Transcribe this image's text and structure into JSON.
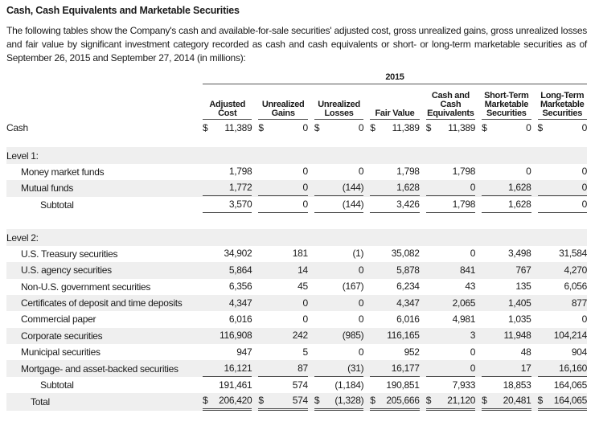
{
  "title": "Cash, Cash Equivalents and Marketable Securities",
  "intro": "The following tables show the Company's cash and available-for-sale securities' adjusted cost, gross unrealized gains, gross unrealized losses and fair value by significant investment category recorded as cash and cash equivalents or short- or long-term marketable securities as of September 26, 2015 and September 27, 2014 (in millions):",
  "table": {
    "year": "2015",
    "columns": [
      "Adjusted Cost",
      "Unrealized Gains",
      "Unrealized Losses",
      "Fair Value",
      "Cash and Cash Equivalents",
      "Short-Term Marketable Securities",
      "Long-Term Marketable Securities"
    ],
    "currency_symbol": "$",
    "rows": [
      {
        "type": "item",
        "indent": 0,
        "gray": false,
        "dollar": true,
        "label": "Cash",
        "values": [
          "11,389",
          "0",
          "0",
          "11,389",
          "11,389",
          "0",
          "0"
        ]
      },
      {
        "type": "spacer"
      },
      {
        "type": "header",
        "gray": true,
        "label": "Level 1:"
      },
      {
        "type": "item",
        "indent": 1,
        "gray": false,
        "label": "Money market funds",
        "values": [
          "1,798",
          "0",
          "0",
          "1,798",
          "1,798",
          "0",
          "0"
        ]
      },
      {
        "type": "item",
        "indent": 1,
        "gray": true,
        "underline": true,
        "label": "Mutual funds",
        "values": [
          "1,772",
          "0",
          "(144)",
          "1,628",
          "0",
          "1,628",
          "0"
        ]
      },
      {
        "type": "item",
        "indent": 2,
        "gray": false,
        "underline": true,
        "label": "Subtotal",
        "values": [
          "3,570",
          "0",
          "(144)",
          "3,426",
          "1,798",
          "1,628",
          "0"
        ]
      },
      {
        "type": "spacer2"
      },
      {
        "type": "header",
        "gray": true,
        "label": "Level 2:"
      },
      {
        "type": "item",
        "indent": 1,
        "gray": false,
        "label": "U.S. Treasury securities",
        "values": [
          "34,902",
          "181",
          "(1)",
          "35,082",
          "0",
          "3,498",
          "31,584"
        ]
      },
      {
        "type": "item",
        "indent": 1,
        "gray": true,
        "label": "U.S. agency securities",
        "values": [
          "5,864",
          "14",
          "0",
          "5,878",
          "841",
          "767",
          "4,270"
        ]
      },
      {
        "type": "item",
        "indent": 1,
        "gray": false,
        "label": "Non-U.S. government securities",
        "values": [
          "6,356",
          "45",
          "(167)",
          "6,234",
          "43",
          "135",
          "6,056"
        ]
      },
      {
        "type": "item",
        "indent": 1,
        "gray": true,
        "label": "Certificates of deposit and time deposits",
        "values": [
          "4,347",
          "0",
          "0",
          "4,347",
          "2,065",
          "1,405",
          "877"
        ]
      },
      {
        "type": "item",
        "indent": 1,
        "gray": false,
        "label": "Commercial paper",
        "values": [
          "6,016",
          "0",
          "0",
          "6,016",
          "4,981",
          "1,035",
          "0"
        ]
      },
      {
        "type": "item",
        "indent": 1,
        "gray": true,
        "label": "Corporate securities",
        "values": [
          "116,908",
          "242",
          "(985)",
          "116,165",
          "3",
          "11,948",
          "104,214"
        ]
      },
      {
        "type": "item",
        "indent": 1,
        "gray": false,
        "label": "Municipal securities",
        "values": [
          "947",
          "5",
          "0",
          "952",
          "0",
          "48",
          "904"
        ]
      },
      {
        "type": "item",
        "indent": 1,
        "gray": true,
        "underline": true,
        "label": "Mortgage- and asset-backed securities",
        "values": [
          "16,121",
          "87",
          "(31)",
          "16,177",
          "0",
          "17",
          "16,160"
        ]
      },
      {
        "type": "item",
        "indent": 2,
        "gray": false,
        "label": "Subtotal",
        "values": [
          "191,461",
          "574",
          "(1,184)",
          "190,851",
          "7,933",
          "18,853",
          "164,065"
        ]
      },
      {
        "type": "item",
        "indent": 3,
        "gray": true,
        "dollar": true,
        "double": true,
        "label": "Total",
        "values": [
          "206,420",
          "574",
          "(1,328)",
          "205,666",
          "21,120",
          "20,481",
          "164,065"
        ]
      }
    ]
  }
}
